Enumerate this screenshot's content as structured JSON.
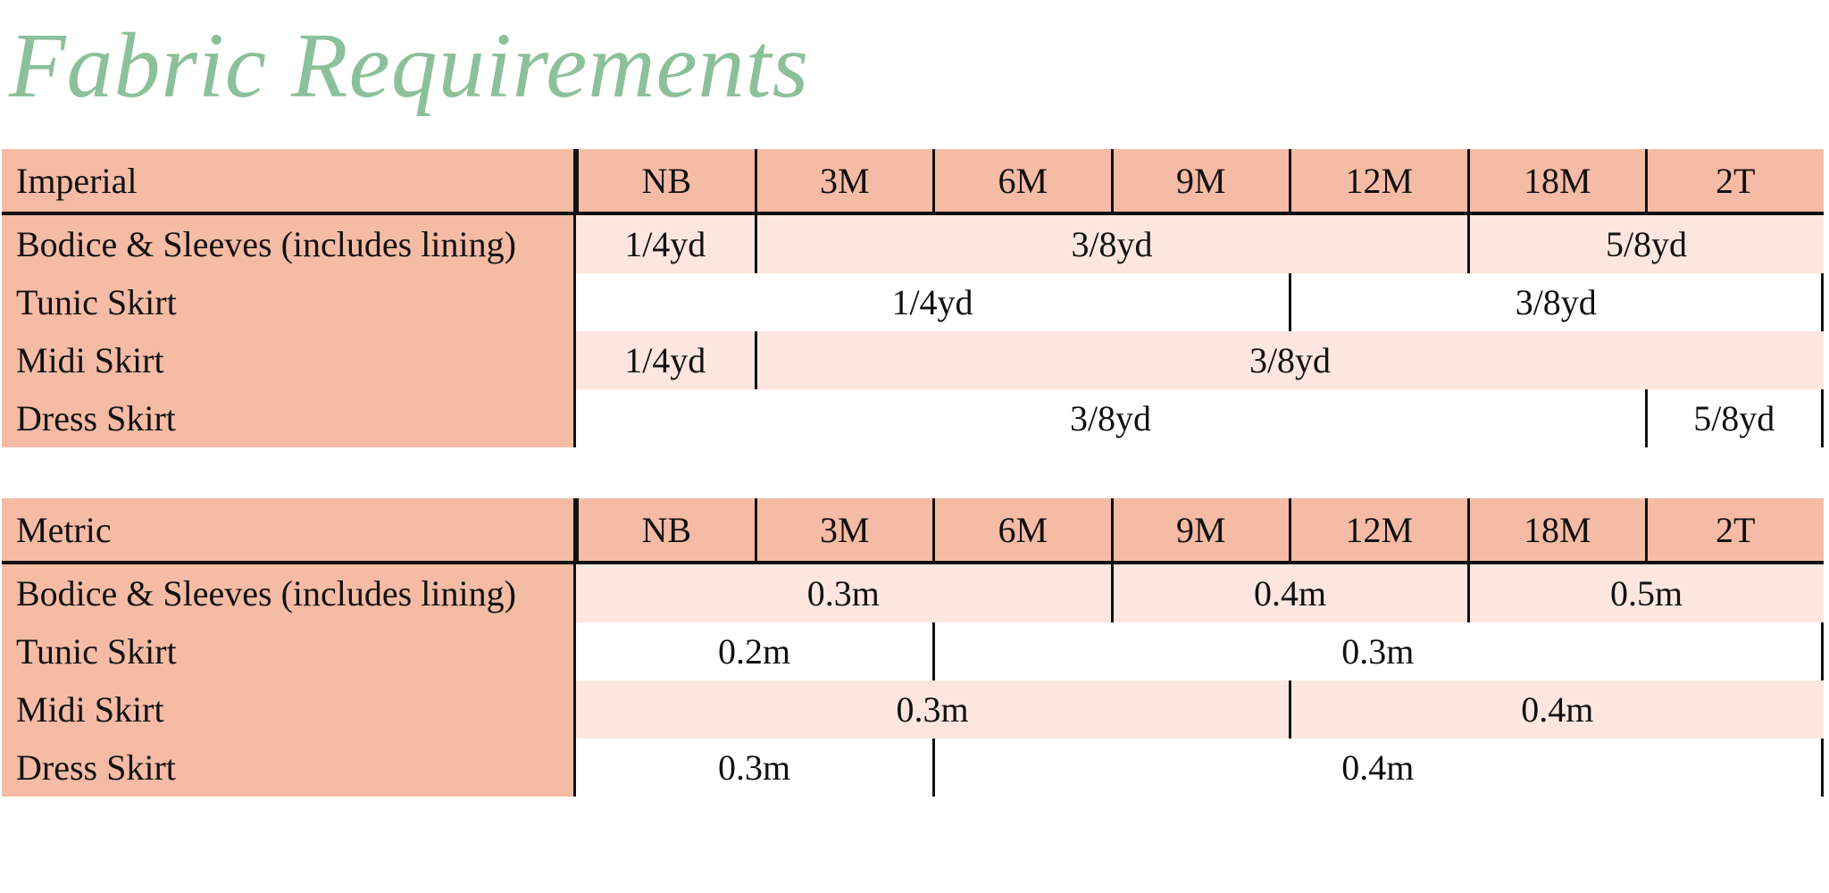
{
  "title": "Fabric Requirements",
  "colors": {
    "title": "#8cc09a",
    "header_bg": "#f6bba5",
    "stripe_bg": "#fce6df"
  },
  "tables": [
    {
      "name": "Imperial",
      "sizes": [
        "NB",
        "3M",
        "6M",
        "9M",
        "12M",
        "18M",
        "2T"
      ],
      "rows": [
        {
          "label": "Bodice & Sleeves (includes lining)",
          "cells": [
            {
              "value": "1/4yd",
              "span": 1
            },
            {
              "value": "3/8yd",
              "span": 4
            },
            {
              "value": "5/8yd",
              "span": 2
            }
          ]
        },
        {
          "label": "Tunic Skirt",
          "cells": [
            {
              "value": "1/4yd",
              "span": 4
            },
            {
              "value": "3/8yd",
              "span": 3
            }
          ]
        },
        {
          "label": "Midi Skirt",
          "cells": [
            {
              "value": "1/4yd",
              "span": 1
            },
            {
              "value": "3/8yd",
              "span": 6
            }
          ]
        },
        {
          "label": "Dress Skirt",
          "cells": [
            {
              "value": "3/8yd",
              "span": 6
            },
            {
              "value": "5/8yd",
              "span": 1
            }
          ]
        }
      ]
    },
    {
      "name": "Metric",
      "sizes": [
        "NB",
        "3M",
        "6M",
        "9M",
        "12M",
        "18M",
        "2T"
      ],
      "rows": [
        {
          "label": "Bodice & Sleeves (includes lining)",
          "cells": [
            {
              "value": "0.3m",
              "span": 3
            },
            {
              "value": "0.4m",
              "span": 2
            },
            {
              "value": "0.5m",
              "span": 2
            }
          ]
        },
        {
          "label": "Tunic Skirt",
          "cells": [
            {
              "value": "0.2m",
              "span": 2
            },
            {
              "value": "0.3m",
              "span": 5
            }
          ]
        },
        {
          "label": "Midi Skirt",
          "cells": [
            {
              "value": "0.3m",
              "span": 4
            },
            {
              "value": "0.4m",
              "span": 3
            }
          ]
        },
        {
          "label": "Dress Skirt",
          "cells": [
            {
              "value": "0.3m",
              "span": 2
            },
            {
              "value": "0.4m",
              "span": 5
            }
          ]
        }
      ]
    }
  ]
}
